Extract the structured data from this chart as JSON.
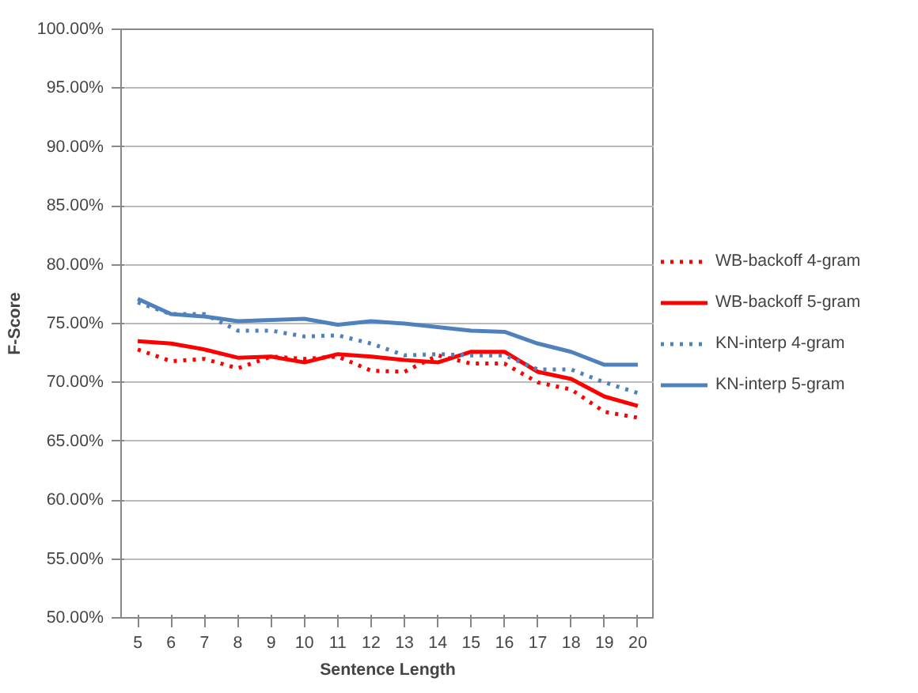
{
  "chart_data": {
    "type": "line",
    "xlabel": "Sentence Length",
    "ylabel": "F-Score",
    "categories": [
      "5",
      "6",
      "7",
      "8",
      "9",
      "10",
      "11",
      "12",
      "13",
      "14",
      "15",
      "16",
      "17",
      "18",
      "19",
      "20"
    ],
    "ylim": [
      50,
      100
    ],
    "yticks": [
      {
        "value": 50,
        "label": "50.00%"
      },
      {
        "value": 55,
        "label": "55.00%"
      },
      {
        "value": 60,
        "label": "60.00%"
      },
      {
        "value": 65,
        "label": "65.00%"
      },
      {
        "value": 70,
        "label": "70.00%"
      },
      {
        "value": 75,
        "label": "75.00%"
      },
      {
        "value": 80,
        "label": "80.00%"
      },
      {
        "value": 85,
        "label": "85.00%"
      },
      {
        "value": 90,
        "label": "90.00%"
      },
      {
        "value": 95,
        "label": "95.00%"
      },
      {
        "value": 100,
        "label": "100.00%"
      }
    ],
    "grid": "y",
    "legend": "right",
    "series": [
      {
        "name": "WB-backoff 4-gram",
        "color": "#ff0000",
        "line_style": "dotted",
        "values": [
          72.8,
          71.8,
          72.0,
          71.2,
          72.2,
          72.0,
          72.2,
          71.0,
          70.9,
          72.3,
          71.6,
          71.6,
          70.0,
          69.4,
          67.5,
          67.0
        ]
      },
      {
        "name": "WB-backoff 5-gram",
        "color": "#ff0000",
        "line_style": "solid",
        "values": [
          73.5,
          73.3,
          72.8,
          72.1,
          72.2,
          71.7,
          72.4,
          72.2,
          71.9,
          71.7,
          72.6,
          72.6,
          70.9,
          70.3,
          68.8,
          68.0
        ]
      },
      {
        "name": "KN-interp 4-gram",
        "color": "#4f81bd",
        "line_style": "dotted",
        "values": [
          76.8,
          75.8,
          75.8,
          74.4,
          74.4,
          73.9,
          74.0,
          73.3,
          72.3,
          72.4,
          72.3,
          72.3,
          71.1,
          71.1,
          70.0,
          69.1
        ]
      },
      {
        "name": "KN-interp 5-gram",
        "color": "#4f81bd",
        "line_style": "solid",
        "values": [
          77.1,
          75.8,
          75.6,
          75.2,
          75.3,
          75.4,
          74.9,
          75.2,
          75.0,
          74.7,
          74.4,
          74.3,
          73.3,
          72.6,
          71.5,
          71.5
        ]
      }
    ]
  }
}
